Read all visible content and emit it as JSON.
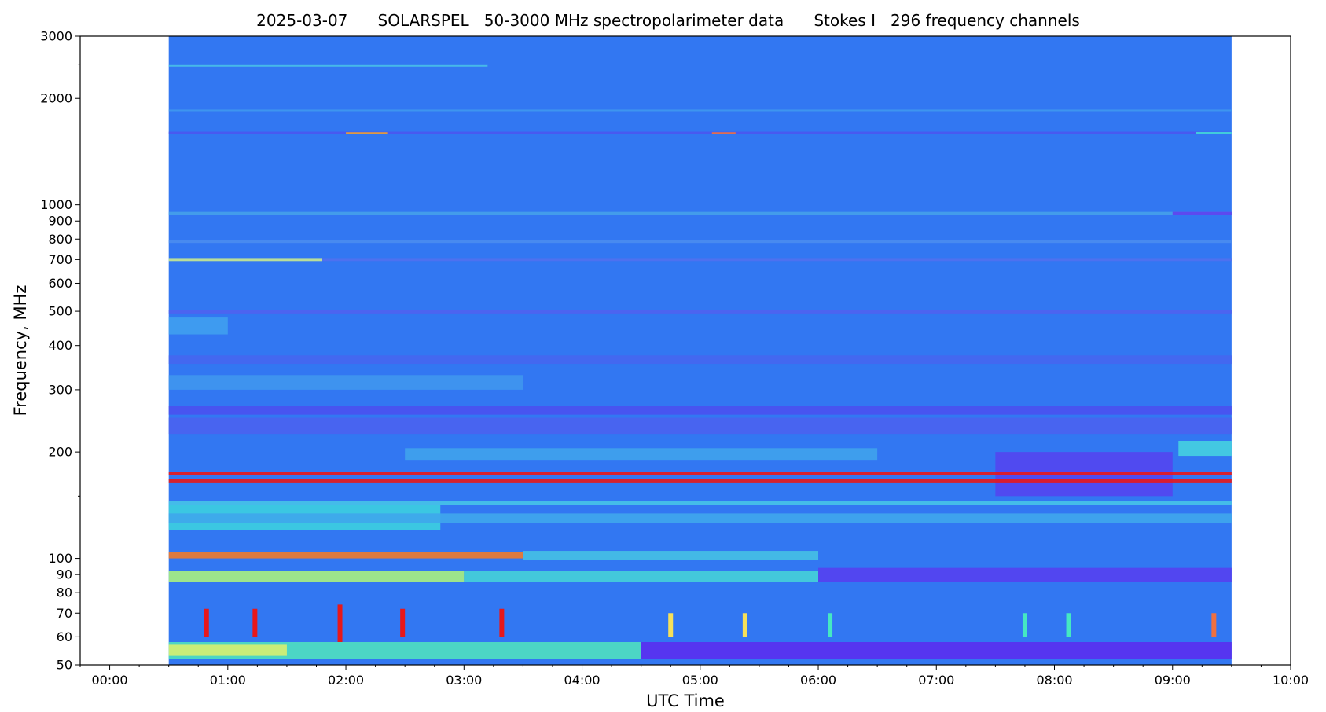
{
  "chart_data": {
    "type": "heatmap",
    "title": "2025-03-07      SOLARSPEL   50-3000 MHz spectropolarimeter data      Stokes I   296 frequency channels",
    "xlabel": "UTC Time",
    "ylabel": "Frequency, MHz",
    "x_unit": "hours UTC",
    "xlim": [
      -0.25,
      10.0
    ],
    "ylim": [
      50,
      3000
    ],
    "y_scale": "log",
    "colormap": "rainbow (blue = low, red = high)",
    "grid": false,
    "legend": "none",
    "data_coverage": {
      "start": "00:30",
      "end": "09:30"
    },
    "x_ticks": [
      {
        "value": 0,
        "label": "00:00"
      },
      {
        "value": 1,
        "label": "01:00"
      },
      {
        "value": 2,
        "label": "02:00"
      },
      {
        "value": 3,
        "label": "03:00"
      },
      {
        "value": 4,
        "label": "04:00"
      },
      {
        "value": 5,
        "label": "05:00"
      },
      {
        "value": 6,
        "label": "06:00"
      },
      {
        "value": 7,
        "label": "07:00"
      },
      {
        "value": 8,
        "label": "08:00"
      },
      {
        "value": 9,
        "label": "09:00"
      },
      {
        "value": 10,
        "label": "10:00"
      }
    ],
    "y_ticks": [
      {
        "value": 50,
        "label": "50"
      },
      {
        "value": 60,
        "label": "60"
      },
      {
        "value": 70,
        "label": "70"
      },
      {
        "value": 80,
        "label": "80"
      },
      {
        "value": 90,
        "label": "90"
      },
      {
        "value": 100,
        "label": "100"
      },
      {
        "value": 200,
        "label": "200"
      },
      {
        "value": 300,
        "label": "300"
      },
      {
        "value": 400,
        "label": "400"
      },
      {
        "value": 500,
        "label": "500"
      },
      {
        "value": 600,
        "label": "600"
      },
      {
        "value": 700,
        "label": "700"
      },
      {
        "value": 800,
        "label": "800"
      },
      {
        "value": 900,
        "label": "900"
      },
      {
        "value": 1000,
        "label": "1000"
      },
      {
        "value": 2000,
        "label": "2000"
      },
      {
        "value": 3000,
        "label": "3000"
      }
    ],
    "y_minor_ticks": [
      150,
      2500
    ],
    "colors": {
      "background": "#3277f2",
      "low": "#5a3cf0",
      "mid": "#2fb4e6",
      "mid_high": "#45e8c2",
      "high": "#f5e05a",
      "peak": "#e8171a"
    },
    "bands": [
      {
        "f1": 1585,
        "f2": 1610,
        "t1": 0.5,
        "t2": 9.5,
        "color": "#4a55f0"
      },
      {
        "f1": 1590,
        "f2": 1605,
        "t1": 2.0,
        "t2": 2.35,
        "color": "#f0a030"
      },
      {
        "f1": 1590,
        "f2": 1605,
        "t1": 5.1,
        "t2": 5.3,
        "color": "#f07040"
      },
      {
        "f1": 1588,
        "f2": 1607,
        "t1": 9.2,
        "t2": 9.5,
        "color": "#40d8d8"
      },
      {
        "f1": 2460,
        "f2": 2485,
        "t1": 0.5,
        "t2": 3.2,
        "color": "#48c0e8"
      },
      {
        "f1": 1840,
        "f2": 1860,
        "t1": 0.5,
        "t2": 9.5,
        "color": "#3f98ee"
      },
      {
        "f1": 935,
        "f2": 955,
        "t1": 0.5,
        "t2": 9.5,
        "color": "#45a0ea"
      },
      {
        "f1": 935,
        "f2": 955,
        "t1": 9.0,
        "t2": 9.5,
        "color": "#6040f0"
      },
      {
        "f1": 780,
        "f2": 795,
        "t1": 0.5,
        "t2": 9.5,
        "color": "#4a8cf0"
      },
      {
        "f1": 693,
        "f2": 707,
        "t1": 0.5,
        "t2": 1.8,
        "color": "#c8e890"
      },
      {
        "f1": 693,
        "f2": 707,
        "t1": 1.8,
        "t2": 9.5,
        "color": "#5070f0"
      },
      {
        "f1": 493,
        "f2": 505,
        "t1": 0.5,
        "t2": 9.5,
        "color": "#4f62f0"
      },
      {
        "f1": 430,
        "f2": 480,
        "t1": 0.5,
        "t2": 1.0,
        "color": "#3f9ff0"
      },
      {
        "f1": 355,
        "f2": 375,
        "t1": 0.5,
        "t2": 9.5,
        "color": "#4566f0"
      },
      {
        "f1": 300,
        "f2": 330,
        "t1": 0.5,
        "t2": 3.5,
        "color": "#3f96ee"
      },
      {
        "f1": 255,
        "f2": 270,
        "t1": 0.5,
        "t2": 9.5,
        "color": "#4a50f0"
      },
      {
        "f1": 225,
        "f2": 250,
        "t1": 0.5,
        "t2": 9.5,
        "color": "#4a62f0"
      },
      {
        "f1": 190,
        "f2": 205,
        "t1": 2.5,
        "t2": 6.5,
        "color": "#3fa2ec"
      },
      {
        "f1": 150,
        "f2": 200,
        "t1": 7.5,
        "t2": 9.0,
        "color": "#5345f0"
      },
      {
        "f1": 195,
        "f2": 215,
        "t1": 9.05,
        "t2": 9.5,
        "color": "#45d0e0"
      },
      {
        "f1": 172,
        "f2": 176,
        "t1": 0.5,
        "t2": 9.5,
        "color": "#e8171a"
      },
      {
        "f1": 164,
        "f2": 168,
        "t1": 0.5,
        "t2": 9.5,
        "color": "#e8171a"
      },
      {
        "f1": 120,
        "f2": 142,
        "t1": 0.5,
        "t2": 2.8,
        "color": "#3ccfe0"
      },
      {
        "f1": 126,
        "f2": 134,
        "t1": 0.5,
        "t2": 9.5,
        "color": "#3fa6ec"
      },
      {
        "f1": 142,
        "f2": 145,
        "t1": 0.5,
        "t2": 9.5,
        "color": "#46c3e8"
      },
      {
        "f1": 100,
        "f2": 104,
        "t1": 0.5,
        "t2": 3.5,
        "color": "#f07a2a"
      },
      {
        "f1": 99,
        "f2": 105,
        "t1": 3.5,
        "t2": 6.0,
        "color": "#45c0e4"
      },
      {
        "f1": 86,
        "f2": 92,
        "t1": 0.5,
        "t2": 3.0,
        "color": "#a8f080"
      },
      {
        "f1": 86,
        "f2": 92,
        "t1": 3.0,
        "t2": 6.0,
        "color": "#45d0d8"
      },
      {
        "f1": 86,
        "f2": 94,
        "t1": 6.0,
        "t2": 9.5,
        "color": "#5540f0"
      },
      {
        "f1": 52,
        "f2": 58,
        "t1": 0.5,
        "t2": 4.5,
        "color": "#4fe0c0"
      },
      {
        "f1": 53,
        "f2": 57,
        "t1": 0.5,
        "t2": 1.5,
        "color": "#d8f070"
      },
      {
        "f1": 52,
        "f2": 58,
        "t1": 4.5,
        "t2": 9.5,
        "color": "#5a2ef0"
      }
    ],
    "bursts": [
      {
        "t": 0.82,
        "f1": 60,
        "f2": 72,
        "color": "#e8171a"
      },
      {
        "t": 1.23,
        "f1": 60,
        "f2": 72,
        "color": "#e8171a"
      },
      {
        "t": 1.95,
        "f1": 58,
        "f2": 74,
        "color": "#e8171a"
      },
      {
        "t": 2.48,
        "f1": 60,
        "f2": 72,
        "color": "#e8171a"
      },
      {
        "t": 3.32,
        "f1": 60,
        "f2": 72,
        "color": "#e8171a"
      },
      {
        "t": 4.75,
        "f1": 60,
        "f2": 70,
        "color": "#f5e05a"
      },
      {
        "t": 5.38,
        "f1": 60,
        "f2": 70,
        "color": "#f5e05a"
      },
      {
        "t": 6.1,
        "f1": 60,
        "f2": 70,
        "color": "#45e8c2"
      },
      {
        "t": 7.75,
        "f1": 60,
        "f2": 70,
        "color": "#45e8c2"
      },
      {
        "t": 8.12,
        "f1": 60,
        "f2": 70,
        "color": "#45e8c2"
      },
      {
        "t": 9.35,
        "f1": 60,
        "f2": 70,
        "color": "#f07040"
      }
    ]
  }
}
